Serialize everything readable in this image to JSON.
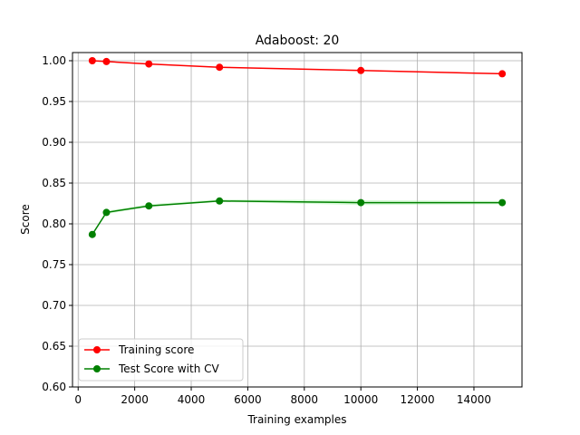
{
  "chart_data": {
    "type": "line",
    "title": "Adaboost: 20",
    "xlabel": "Training examples",
    "ylabel": "Score",
    "xlim": [
      -200,
      15700
    ],
    "ylim": [
      0.6,
      1.01
    ],
    "xticks": [
      0,
      2000,
      4000,
      6000,
      8000,
      10000,
      12000,
      14000
    ],
    "yticks": [
      0.6,
      0.65,
      0.7,
      0.75,
      0.8,
      0.85,
      0.9,
      0.95,
      1.0
    ],
    "grid": true,
    "legend_position": "lower-left",
    "series": [
      {
        "name": "Training score",
        "color": "#ff0000",
        "marker": "circle",
        "x": [
          500,
          1000,
          2500,
          5000,
          10000,
          15000
        ],
        "y": [
          1.0,
          0.999,
          0.996,
          0.992,
          0.988,
          0.984
        ]
      },
      {
        "name": "Test Score with CV",
        "color": "#008000",
        "marker": "circle",
        "x": [
          500,
          1000,
          2500,
          5000,
          10000,
          15000
        ],
        "y": [
          0.787,
          0.814,
          0.822,
          0.828,
          0.826,
          0.826
        ],
        "band_low": [
          0.786,
          0.812,
          0.821,
          0.827,
          0.823,
          0.824
        ],
        "band_high": [
          0.788,
          0.816,
          0.824,
          0.83,
          0.829,
          0.828
        ],
        "band_color": "#90ee90"
      }
    ]
  }
}
